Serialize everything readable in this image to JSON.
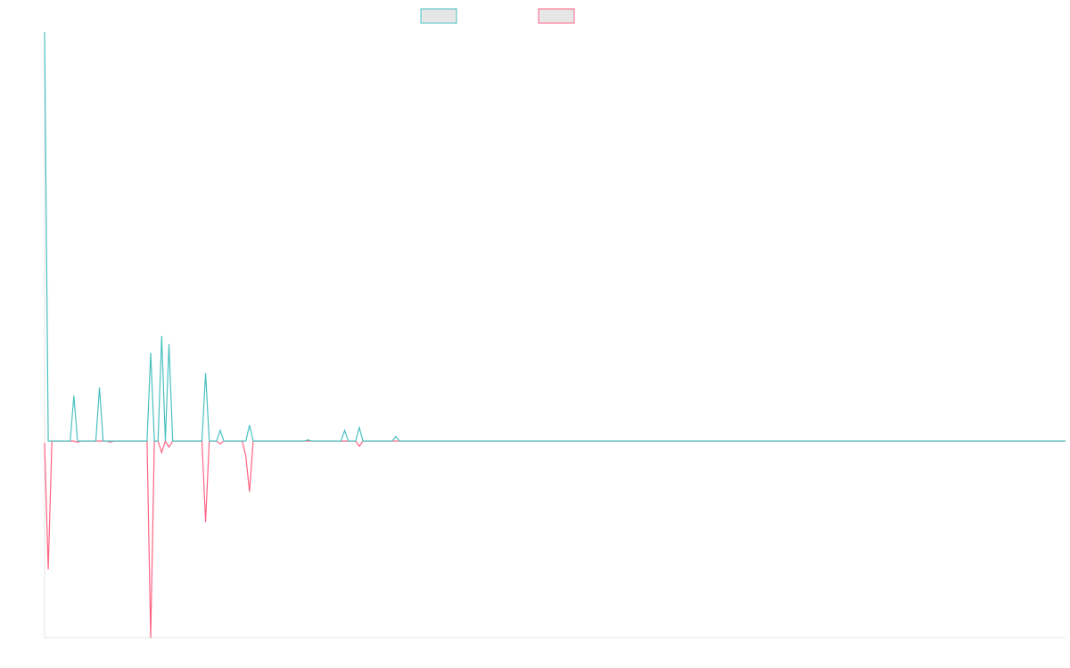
{
  "chart_data": {
    "type": "line",
    "ylim": [
      -48.1,
      100
    ],
    "grid": false,
    "legend": "top",
    "series": [
      {
        "color": "#4bc0c0",
        "values": [
          100,
          0,
          0,
          0,
          0,
          0,
          0,
          0,
          11.1,
          0,
          0,
          0,
          0,
          0,
          0,
          13.1,
          0,
          0,
          0,
          0,
          0,
          0,
          0,
          0,
          0,
          0,
          0,
          0,
          0,
          21.6,
          0,
          0,
          25.7,
          0,
          23.7,
          0,
          0,
          0,
          0,
          0,
          0,
          0,
          0,
          0,
          16.6,
          0,
          0,
          0,
          2.6,
          0,
          0,
          0,
          0,
          0,
          0,
          0,
          3.9,
          0,
          0,
          0,
          0,
          0,
          0,
          0,
          0,
          0,
          0,
          0,
          0,
          0,
          0,
          0,
          0.3,
          0,
          0,
          0,
          0,
          0,
          0,
          0,
          0,
          0,
          2.6,
          0,
          0,
          0,
          3.3,
          0,
          0,
          0,
          0,
          0,
          0,
          0,
          0,
          0,
          1.1,
          0,
          0,
          0,
          0,
          0,
          0,
          0,
          0,
          0,
          0,
          0,
          0,
          0,
          0,
          0,
          0,
          0,
          0,
          0,
          0,
          0,
          0,
          0,
          0,
          0,
          0,
          0,
          0,
          0,
          0,
          0,
          0,
          0,
          0,
          0,
          0,
          0,
          0,
          0,
          0,
          0,
          0,
          0,
          0,
          0,
          0,
          0,
          0,
          0,
          0,
          0,
          0,
          0,
          0,
          0,
          0,
          0,
          0,
          0,
          0,
          0,
          0,
          0,
          0,
          0,
          0,
          0,
          0,
          0,
          0,
          0,
          0,
          0,
          0,
          0,
          0,
          0,
          0,
          0,
          0,
          0,
          0,
          0,
          0,
          0,
          0,
          0,
          0,
          0,
          0,
          0,
          0,
          0,
          0,
          0,
          0,
          0,
          0,
          0,
          0,
          0,
          0,
          0,
          0,
          0,
          0,
          0,
          0,
          0,
          0,
          0,
          0,
          0,
          0,
          0,
          0,
          0,
          0,
          0,
          0,
          0,
          0,
          0,
          0,
          0,
          0,
          0,
          0,
          0,
          0,
          0,
          0,
          0,
          0,
          0,
          0,
          0,
          0,
          0,
          0,
          0,
          0,
          0,
          0,
          0,
          0,
          0,
          0,
          0,
          0,
          0,
          0,
          0,
          0,
          0,
          0,
          0,
          0,
          0,
          0,
          0,
          0,
          0,
          0,
          0,
          0,
          0,
          0,
          0,
          0,
          0,
          0,
          0,
          0,
          0,
          0,
          0,
          0,
          0,
          0,
          0,
          0,
          0
        ]
      },
      {
        "color": "#ff6384",
        "values": [
          -0.4,
          -31.4,
          0,
          0,
          0,
          0,
          0,
          0,
          0,
          -0.3,
          0,
          0,
          0,
          0,
          0,
          0,
          0,
          0,
          -0.3,
          0,
          0,
          0,
          0,
          0,
          0,
          0,
          0,
          0,
          0,
          -48.1,
          0,
          0,
          -2.8,
          0,
          -1.5,
          0,
          0,
          0,
          0,
          0,
          0,
          0,
          0,
          0,
          -19.8,
          0,
          0,
          0,
          -0.7,
          0,
          0,
          0,
          0,
          0,
          0,
          -3.7,
          -12.4,
          0,
          0,
          0,
          0,
          0,
          0,
          0,
          0,
          0,
          0,
          0,
          0,
          0,
          0,
          0,
          0,
          0,
          0,
          0,
          0,
          0,
          0,
          0,
          0,
          0,
          0,
          0,
          0,
          0,
          -1.3,
          0,
          0,
          0,
          0,
          0,
          0,
          0,
          0,
          0,
          0,
          0,
          0,
          0,
          0,
          0,
          0,
          0,
          0,
          0,
          0,
          0,
          0,
          0,
          0,
          0,
          0,
          0,
          0,
          0,
          0,
          0,
          0,
          0,
          0,
          0,
          0,
          0,
          0,
          0,
          0,
          0,
          0,
          0,
          0,
          0,
          0,
          0,
          0,
          0,
          0,
          0,
          0,
          0,
          0,
          0,
          0,
          0,
          0,
          0,
          0,
          0,
          0,
          0,
          0,
          0,
          0,
          0,
          0,
          0,
          0,
          0,
          0,
          0,
          0,
          0,
          0,
          0,
          0,
          0,
          0,
          0,
          0,
          0,
          0,
          0,
          0,
          0,
          0,
          0,
          0,
          0,
          0,
          0,
          0,
          0,
          0,
          0,
          0,
          0,
          0,
          0,
          0,
          0,
          0,
          0,
          0,
          0,
          0,
          0,
          0,
          0,
          0,
          0,
          0,
          0,
          0,
          0,
          0,
          0,
          0,
          0,
          0,
          0,
          0,
          0,
          0,
          0,
          0,
          0,
          0,
          0,
          0,
          0,
          0,
          0,
          0,
          0,
          0,
          0,
          0,
          0,
          0,
          0,
          0,
          0,
          0,
          0,
          0,
          0,
          0,
          0,
          0,
          0,
          0,
          0,
          0,
          0,
          0,
          0,
          0,
          0,
          0,
          0,
          0,
          0,
          0,
          0,
          0,
          0,
          0,
          0,
          0,
          0,
          0,
          0,
          0,
          0,
          0,
          0,
          0,
          0,
          0,
          0,
          0,
          0,
          0,
          0,
          0,
          0,
          0,
          0,
          0,
          0
        ]
      }
    ]
  }
}
